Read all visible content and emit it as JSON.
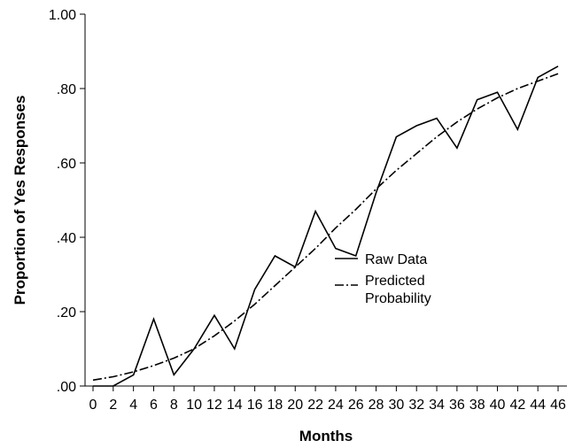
{
  "chart_data": {
    "type": "line",
    "xlabel": "Months",
    "ylabel": "Proportion of Yes Responses",
    "xlim": [
      0,
      46
    ],
    "ylim": [
      0,
      1
    ],
    "x_ticks": [
      0,
      2,
      4,
      6,
      8,
      10,
      12,
      14,
      16,
      18,
      20,
      22,
      24,
      26,
      28,
      30,
      32,
      34,
      36,
      38,
      40,
      42,
      44,
      46
    ],
    "x_tick_labels": [
      "0",
      "2",
      "4",
      "6",
      "8",
      "10",
      "12",
      "14",
      "16",
      "18",
      "20",
      "22",
      "24",
      "26",
      "28",
      "30",
      "32",
      "34",
      "36",
      "38",
      "40",
      "42",
      "44",
      "46"
    ],
    "y_ticks": [
      0,
      0.2,
      0.4,
      0.6,
      0.8,
      1.0
    ],
    "y_tick_labels": [
      ".00",
      ".20",
      ".40",
      ".60",
      ".80",
      "1.00"
    ],
    "grid": false,
    "legend_position": "center-right",
    "series": [
      {
        "name": "Raw Data",
        "style": "solid",
        "color": "#000000",
        "x": [
          0,
          2,
          4,
          6,
          8,
          10,
          12,
          14,
          16,
          18,
          20,
          22,
          24,
          26,
          28,
          30,
          32,
          34,
          36,
          38,
          40,
          42,
          44,
          46
        ],
        "y": [
          0.0,
          0.0,
          0.03,
          0.18,
          0.03,
          0.1,
          0.19,
          0.1,
          0.26,
          0.35,
          0.32,
          0.47,
          0.37,
          0.35,
          0.52,
          0.67,
          0.7,
          0.72,
          0.64,
          0.77,
          0.79,
          0.69,
          0.83,
          0.86
        ]
      },
      {
        "name_lines": [
          "Predicted",
          "Probability"
        ],
        "style": "dash-dot",
        "color": "#000000",
        "x": [
          0,
          2,
          4,
          6,
          8,
          10,
          12,
          14,
          16,
          18,
          20,
          22,
          24,
          26,
          28,
          30,
          32,
          34,
          36,
          38,
          40,
          42,
          44,
          46
        ],
        "y": [
          0.016,
          0.025,
          0.038,
          0.055,
          0.075,
          0.1,
          0.135,
          0.175,
          0.22,
          0.27,
          0.32,
          0.37,
          0.425,
          0.475,
          0.53,
          0.58,
          0.625,
          0.67,
          0.71,
          0.745,
          0.775,
          0.8,
          0.82,
          0.84
        ]
      }
    ]
  }
}
